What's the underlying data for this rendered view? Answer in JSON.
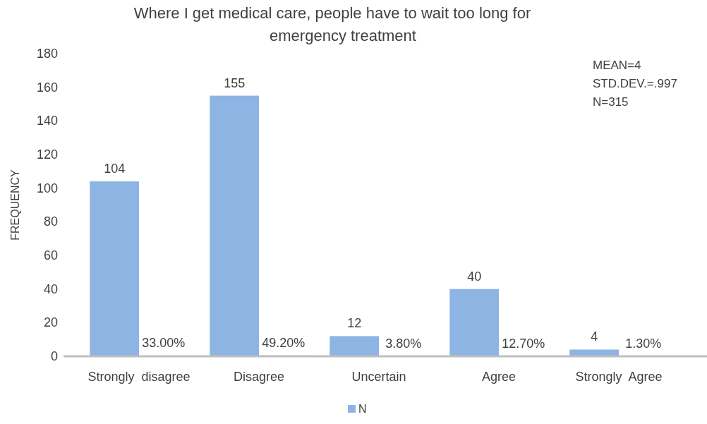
{
  "chart_data": {
    "type": "bar",
    "title": "Where I get medical care, people have to wait too long for emergency treatment",
    "ylabel": "FREQUENCY",
    "categories": [
      "Strongly  disagree",
      "Disagree",
      "Uncertain",
      "Agree",
      "Strongly  Agree"
    ],
    "series": [
      {
        "name": "N",
        "color": "#8db4e2",
        "values": [
          104,
          155,
          12,
          40,
          4
        ],
        "value_labels": [
          "104",
          "155",
          "12",
          "40",
          "4"
        ]
      },
      {
        "color": "#ed7d31",
        "values": [
          0.33,
          0.492,
          0.038,
          0.127,
          0.013
        ],
        "value_labels": [
          "33.00%",
          "49.20%",
          "3.80%",
          "12.70%",
          "1.30%"
        ]
      }
    ],
    "ylim": [
      0,
      180
    ],
    "yticks": [
      0,
      20,
      40,
      60,
      80,
      100,
      120,
      140,
      160,
      180
    ],
    "grid": false,
    "legend": "bottom",
    "annotations": [
      "MEAN=4",
      "STD.DEV.=.997",
      "N=315"
    ]
  }
}
